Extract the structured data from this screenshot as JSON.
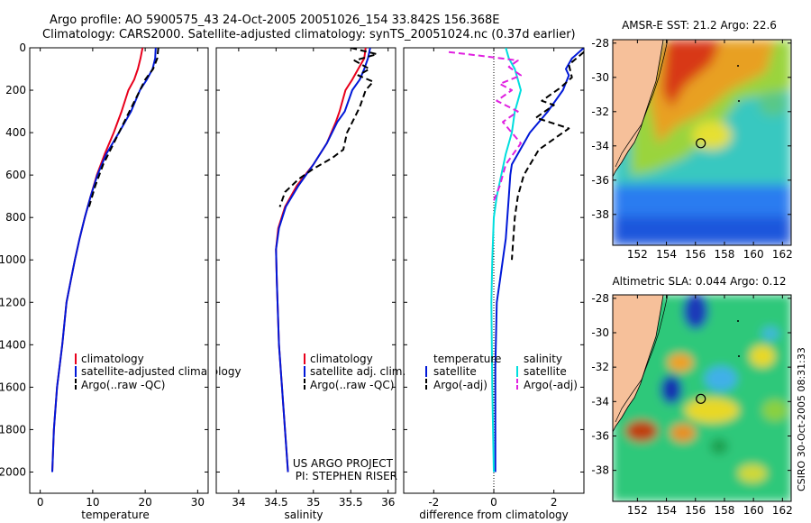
{
  "figure": {
    "title_line1": "Argo profile: AO 5900575_43 24-Oct-2005 20051026_154 33.842S 156.368E",
    "title_line2": "Climatology: CARS2000. Satellite-adjusted climatology: synTS_20051024.nc (0.37d earlier)",
    "credit_line1": "US ARGO PROJECT",
    "credit_line2": "PI: STEPHEN RISER",
    "timestamp": "CSIRO 30-Oct-2005 08:31:33"
  },
  "colors": {
    "climatology": "#e8001c",
    "satellite": "#0018d8",
    "argo": "#000000",
    "sat_salinity": "#00dede",
    "argo_salinity_adj": "#e020e0"
  },
  "chart_data": [
    {
      "type": "line",
      "id": "temperature",
      "xlabel": "temperature",
      "ylabel": "",
      "xlim": [
        -2,
        32
      ],
      "ylim": [
        2100,
        0
      ],
      "xticks": [
        0,
        10,
        20,
        30
      ],
      "yticks": [
        0,
        200,
        400,
        600,
        800,
        1000,
        1200,
        1400,
        1600,
        1800,
        2000
      ],
      "legend_labels": [
        "climatology",
        "satellite-adjusted climatology",
        "Argo(..raw -QC)"
      ],
      "series": [
        {
          "name": "climatology",
          "color": "climatology",
          "dash": false,
          "x": [
            19.5,
            19.1,
            18.6,
            17.9,
            16.8,
            15.5,
            14.0,
            12.3,
            10.8,
            9.6,
            8.5,
            7.5,
            6.6,
            5.8,
            5.0,
            4.2,
            3.7,
            3.2,
            2.6,
            2.3
          ],
          "y": [
            0,
            50,
            100,
            150,
            200,
            300,
            400,
            500,
            600,
            700,
            800,
            900,
            1000,
            1100,
            1200,
            1400,
            1500,
            1600,
            1800,
            2000
          ]
        },
        {
          "name": "satellite-adjusted climatology",
          "color": "satellite",
          "dash": false,
          "x": [
            22.0,
            21.9,
            21.4,
            20.3,
            19.0,
            17.3,
            15.0,
            12.6,
            10.9,
            9.6,
            8.5,
            7.5,
            6.6,
            5.8,
            5.0,
            4.2,
            3.7,
            3.2,
            2.6,
            2.3
          ],
          "y": [
            0,
            50,
            100,
            150,
            200,
            300,
            400,
            500,
            600,
            700,
            800,
            900,
            1000,
            1100,
            1200,
            1400,
            1500,
            1600,
            1800,
            2000
          ]
        },
        {
          "name": "Argo(..raw -QC)",
          "color": "argo",
          "dash": true,
          "x": [
            22.5,
            22.3,
            21.5,
            20.0,
            18.0,
            16.0,
            14.0,
            12.0,
            10.5,
            9.3
          ],
          "y": [
            0,
            50,
            100,
            150,
            250,
            350,
            450,
            550,
            650,
            750
          ]
        }
      ]
    },
    {
      "type": "line",
      "id": "salinity",
      "xlabel": "salinity",
      "ylabel": "",
      "xlim": [
        33.7,
        36.1
      ],
      "ylim": [
        2100,
        0
      ],
      "xticks": [
        34,
        34.5,
        35,
        35.5,
        36
      ],
      "yticks": [
        0,
        200,
        400,
        600,
        800,
        1000,
        1200,
        1400,
        1600,
        1800,
        2000
      ],
      "legend_labels": [
        "climatology",
        "satellite adj. clim.",
        "Argo(..raw -QC)"
      ],
      "series": [
        {
          "name": "climatology",
          "color": "climatology",
          "dash": false,
          "x": [
            35.7,
            35.68,
            35.6,
            35.52,
            35.43,
            35.35,
            35.3,
            35.18,
            35.0,
            34.78,
            34.62,
            34.53,
            34.5,
            34.51,
            34.52,
            34.54,
            34.6,
            34.66
          ],
          "y": [
            0,
            50,
            100,
            150,
            200,
            300,
            350,
            450,
            550,
            650,
            750,
            850,
            950,
            1100,
            1200,
            1400,
            1700,
            2000
          ]
        },
        {
          "name": "satellite adj. clim.",
          "color": "satellite",
          "dash": false,
          "x": [
            35.76,
            35.73,
            35.68,
            35.62,
            35.52,
            35.42,
            35.32,
            35.18,
            35.0,
            34.8,
            34.63,
            34.54,
            34.5,
            34.51,
            34.52,
            34.54,
            34.6,
            34.66
          ],
          "y": [
            0,
            50,
            100,
            150,
            200,
            300,
            350,
            450,
            550,
            650,
            750,
            850,
            950,
            1100,
            1200,
            1400,
            1700,
            2000
          ]
        },
        {
          "name": "Argo(..raw -QC)",
          "color": "argo",
          "dash": true,
          "x": [
            35.5,
            35.85,
            35.55,
            35.75,
            35.6,
            35.8,
            35.7,
            35.62,
            35.55,
            35.45,
            35.4,
            35.25,
            35.0,
            34.8,
            34.62,
            34.55
          ],
          "y": [
            0,
            30,
            60,
            100,
            130,
            160,
            200,
            280,
            330,
            400,
            480,
            520,
            570,
            620,
            680,
            750
          ]
        }
      ]
    },
    {
      "type": "line",
      "id": "difference",
      "xlabel": "difference from climatology",
      "ylabel": "",
      "xlim": [
        -3,
        3
      ],
      "ylim": [
        2100,
        0
      ],
      "xticks": [
        -2,
        0,
        2
      ],
      "yticks": [
        0,
        200,
        400,
        600,
        800,
        1000,
        1200,
        1400,
        1600,
        1800,
        2000
      ],
      "legend_col1_header": "temperature",
      "legend_col2_header": "salinity",
      "legend_labels": [
        "satellite",
        "Argo(-adj)",
        "satellite",
        "Argo(-adj)"
      ],
      "series": [
        {
          "name": "temperature satellite",
          "color": "satellite",
          "dash": false,
          "x": [
            3.0,
            2.6,
            2.4,
            2.5,
            2.3,
            1.8,
            1.2,
            0.8,
            0.6,
            0.55,
            0.5,
            0.45,
            0.4,
            0.3,
            0.2,
            0.1,
            0.05,
            0.05
          ],
          "y": [
            0,
            50,
            100,
            130,
            200,
            300,
            400,
            500,
            550,
            600,
            700,
            800,
            900,
            1000,
            1100,
            1200,
            1500,
            2000
          ]
        },
        {
          "name": "temperature Argo(-adj)",
          "color": "argo",
          "dash": true,
          "x": [
            3.0,
            2.5,
            2.6,
            2.2,
            1.6,
            2.0,
            1.4,
            2.5,
            1.5,
            1.0,
            0.8,
            0.7,
            0.6
          ],
          "y": [
            20,
            80,
            140,
            190,
            250,
            270,
            330,
            380,
            480,
            600,
            700,
            800,
            1000
          ]
        },
        {
          "name": "salinity satellite",
          "color": "sat_salinity",
          "dash": false,
          "x": [
            0.4,
            0.5,
            0.7,
            0.8,
            0.9,
            0.8,
            0.7,
            0.6,
            0.4,
            0.25,
            0.1,
            0.0,
            -0.05,
            -0.08,
            -0.05,
            0.0
          ],
          "y": [
            0,
            50,
            100,
            150,
            200,
            250,
            300,
            400,
            500,
            600,
            700,
            800,
            1000,
            1200,
            1600,
            2000
          ]
        },
        {
          "name": "salinity Argo(-adj)",
          "color": "argo_salinity_adj",
          "dash": true,
          "x": [
            -1.5,
            -0.3,
            0.8,
            0.5,
            0.9,
            0.2,
            0.6,
            0.1,
            0.8,
            0.3,
            0.9,
            0.4,
            0.2,
            0.0
          ],
          "y": [
            20,
            40,
            60,
            90,
            130,
            170,
            200,
            250,
            300,
            350,
            450,
            550,
            650,
            720
          ]
        }
      ]
    },
    {
      "type": "heatmap",
      "id": "map_sst",
      "title": "AMSR-E SST: 21.2 Argo: 22.6",
      "xlim": [
        150.3,
        162.6
      ],
      "ylim": [
        -39.8,
        -27.8
      ],
      "xticks": [
        152,
        154,
        156,
        158,
        160,
        162
      ],
      "yticks": [
        -28,
        -30,
        -32,
        -34,
        -36,
        -38
      ],
      "float_lon": 156.37,
      "float_lat": -33.84
    },
    {
      "type": "heatmap",
      "id": "map_sla",
      "title": "Altimetric SLA: 0.044 Argo: 0.12",
      "xlim": [
        150.3,
        162.6
      ],
      "ylim": [
        -39.8,
        -27.8
      ],
      "xticks": [
        152,
        154,
        156,
        158,
        160,
        162
      ],
      "yticks": [
        -28,
        -30,
        -32,
        -34,
        -36,
        -38
      ],
      "float_lon": 156.37,
      "float_lat": -33.84
    }
  ]
}
